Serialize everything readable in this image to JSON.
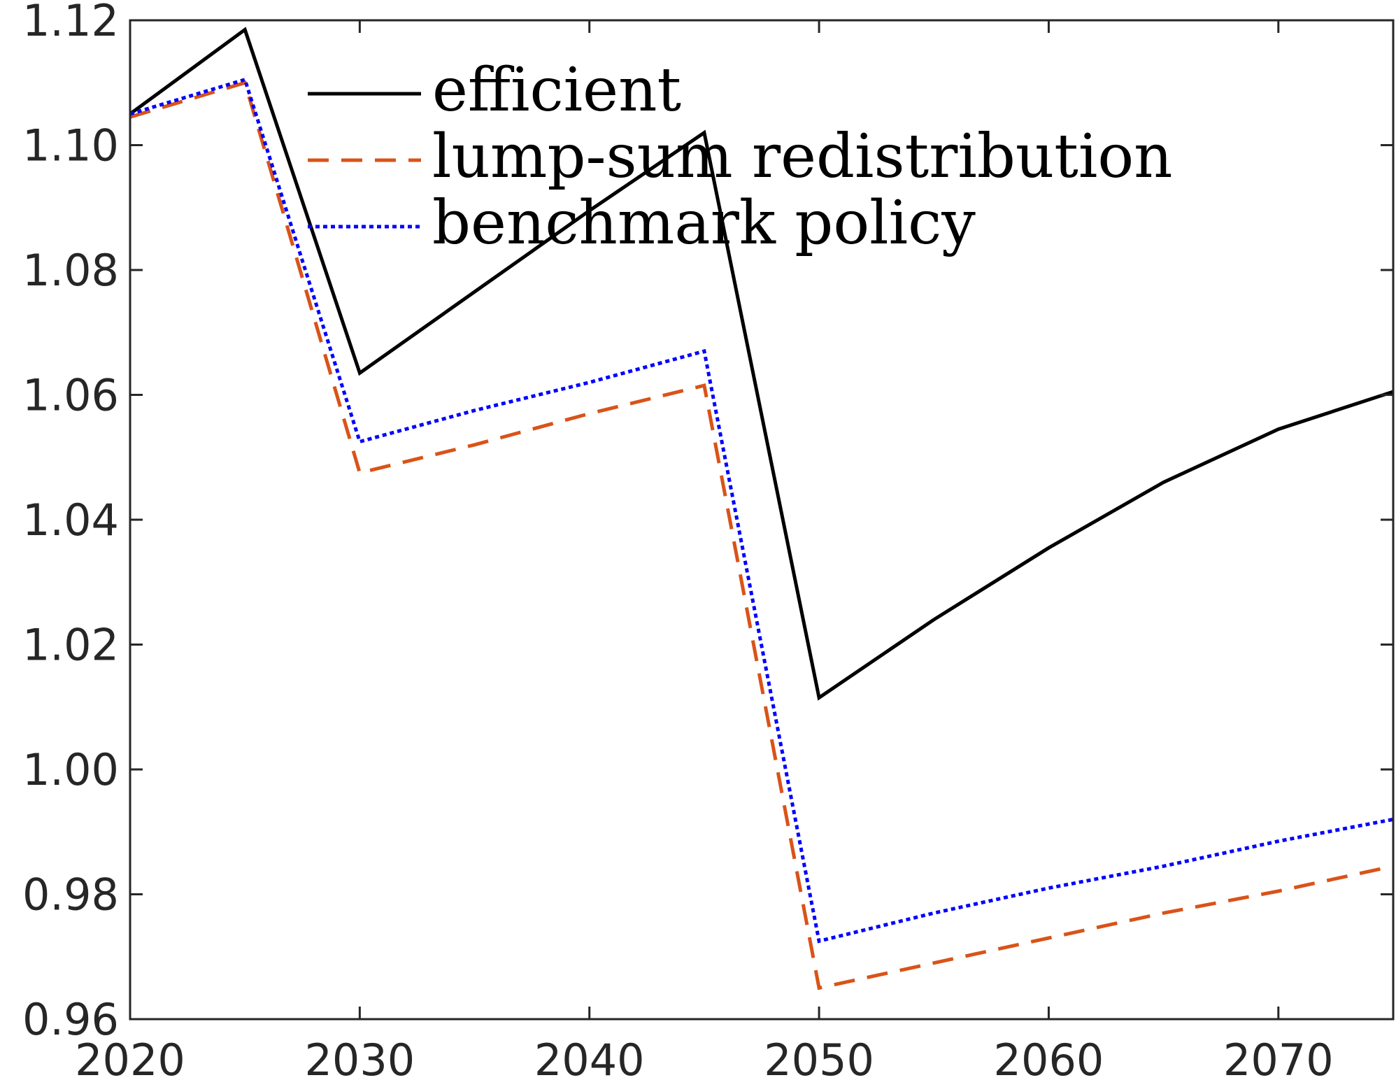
{
  "chart_data": {
    "type": "line",
    "title": "",
    "xlabel": "",
    "ylabel": "",
    "xlim": [
      2020,
      2075
    ],
    "ylim": [
      0.96,
      1.12
    ],
    "xticks": [
      2020,
      2030,
      2040,
      2050,
      2060,
      2070
    ],
    "yticks": [
      0.96,
      0.98,
      1.0,
      1.02,
      1.04,
      1.06,
      1.08,
      1.1,
      1.12
    ],
    "xtick_labels": [
      "2020",
      "2030",
      "2040",
      "2050",
      "2060",
      "2070"
    ],
    "ytick_labels": [
      "0.96",
      "0.98",
      "1.00",
      "1.02",
      "1.04",
      "1.06",
      "1.08",
      "1.10",
      "1.12"
    ],
    "grid": false,
    "legend_position": "top-center",
    "x": [
      2020,
      2025,
      2030,
      2035,
      2040,
      2045,
      2050,
      2055,
      2060,
      2065,
      2070,
      2075
    ],
    "series": [
      {
        "name": "efficient",
        "color": "#000000",
        "style": "solid",
        "values": [
          1.105,
          1.1185,
          1.0635,
          1.0765,
          1.0895,
          1.102,
          1.0115,
          1.024,
          1.0355,
          1.046,
          1.0545,
          1.0605
        ]
      },
      {
        "name": "lump-sum redistribution",
        "color": "#D95319",
        "style": "dashed",
        "values": [
          1.1045,
          1.11,
          1.0475,
          1.052,
          1.057,
          1.0615,
          0.965,
          0.969,
          0.973,
          0.977,
          0.9805,
          0.9845
        ]
      },
      {
        "name": "benchmark policy",
        "color": "#0000FF",
        "style": "dotted",
        "values": [
          1.105,
          1.1105,
          1.0525,
          1.0575,
          1.062,
          1.067,
          0.9725,
          0.977,
          0.981,
          0.9845,
          0.9885,
          0.992
        ]
      }
    ]
  }
}
